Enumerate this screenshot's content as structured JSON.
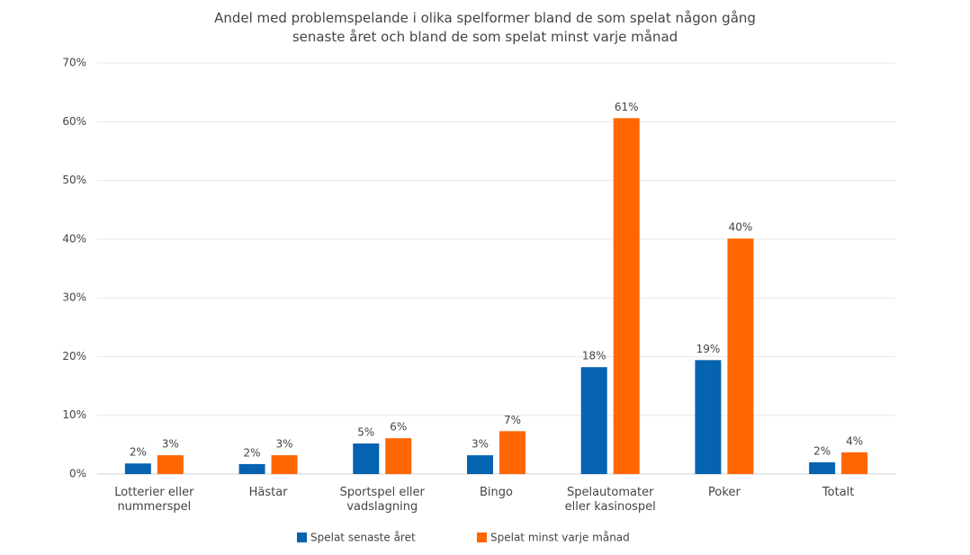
{
  "chart_data": {
    "type": "bar",
    "title": "Andel med problemspelande i olika spelformer bland de som spelat någon gång senaste året och bland de som spelat minst varje månad",
    "categories": [
      "Lotterier eller nummerspel",
      "Hästar",
      "Sportspel eller vadslagning",
      "Bingo",
      "Spelautomater eller kasinospel",
      "Poker",
      "Totalt"
    ],
    "series": [
      {
        "name": "Spelat senaste året",
        "color": "#0563b0",
        "values": [
          1.8,
          1.7,
          5.2,
          3.2,
          18.2,
          19.4,
          2.0
        ],
        "value_labels": [
          "2%",
          "2%",
          "5%",
          "3%",
          "18%",
          "19%",
          "2%"
        ]
      },
      {
        "name": "Spelat minst varje månad",
        "color": "#ff6600",
        "values": [
          3.2,
          3.2,
          6.1,
          7.3,
          60.6,
          40.1,
          3.7
        ],
        "value_labels": [
          "3%",
          "3%",
          "6%",
          "7%",
          "61%",
          "40%",
          "4%"
        ]
      }
    ],
    "ylim": [
      0,
      70
    ],
    "yticks": [
      {
        "value": 0,
        "label": "0%"
      },
      {
        "value": 10,
        "label": "10%"
      },
      {
        "value": 20,
        "label": "20%"
      },
      {
        "value": 30,
        "label": "30%"
      },
      {
        "value": 40,
        "label": "40%"
      },
      {
        "value": 50,
        "label": "50%"
      },
      {
        "value": 60,
        "label": "60%"
      },
      {
        "value": 70,
        "label": "70%"
      }
    ],
    "grid": true
  }
}
